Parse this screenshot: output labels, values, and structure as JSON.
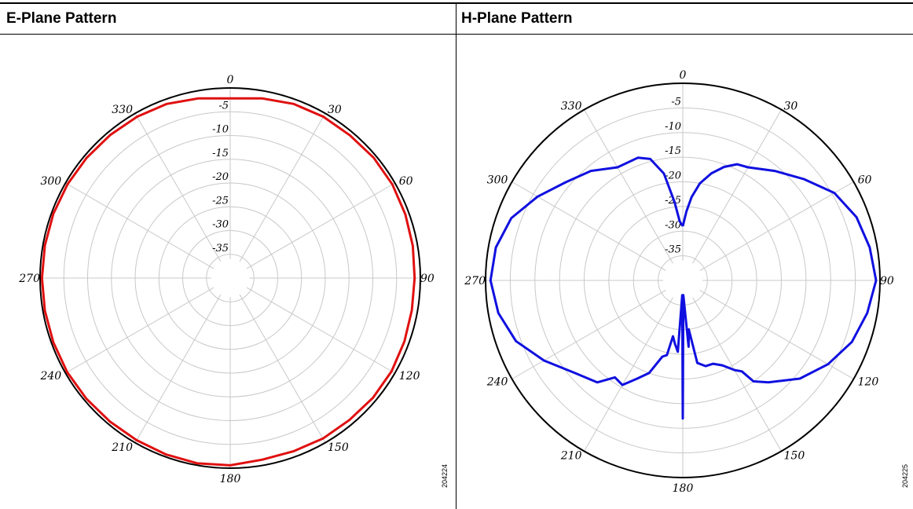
{
  "panels": [
    {
      "title": "E-Plane Pattern",
      "figure_id": "204224"
    },
    {
      "title": "H-Plane Pattern",
      "figure_id": "204225"
    }
  ],
  "chart_data": [
    {
      "type": "polar-line",
      "title": "E-Plane Pattern",
      "angle_labels": [
        "0",
        "30",
        "60",
        "90",
        "120",
        "150",
        "180",
        "210",
        "240",
        "270",
        "300",
        "330"
      ],
      "radial_labels": [
        "-5",
        "-10",
        "-15",
        "-20",
        "-25",
        "-30",
        "-35"
      ],
      "rlim": [
        -40,
        0
      ],
      "grid": true,
      "color": "#e01010",
      "series": [
        {
          "angles": [
            0,
            10,
            20,
            30,
            40,
            50,
            60,
            70,
            80,
            90,
            100,
            110,
            120,
            130,
            140,
            150,
            160,
            170,
            180,
            190,
            200,
            210,
            220,
            230,
            240,
            250,
            260,
            270,
            280,
            290,
            300,
            310,
            320,
            330,
            340,
            350,
            360
          ],
          "values": [
            -2.2,
            -1.6,
            -1.0,
            -0.8,
            -0.8,
            -0.6,
            -0.6,
            -0.8,
            -1.0,
            -1.2,
            -1.2,
            -1.0,
            -0.8,
            -0.8,
            -1.0,
            -1.0,
            -1.2,
            -1.2,
            -0.6,
            -0.4,
            -0.5,
            -0.6,
            -0.6,
            -0.5,
            -0.4,
            -0.4,
            -0.4,
            -0.4,
            -0.4,
            -0.4,
            -0.5,
            -0.6,
            -0.7,
            -0.8,
            -1.0,
            -1.6,
            -2.2
          ]
        }
      ]
    },
    {
      "type": "polar-line",
      "title": "H-Plane Pattern",
      "angle_labels": [
        "0",
        "30",
        "60",
        "90",
        "120",
        "150",
        "180",
        "210",
        "240",
        "270",
        "300",
        "330"
      ],
      "radial_labels": [
        "-5",
        "-10",
        "-15",
        "-20",
        "-25",
        "-30",
        "-35"
      ],
      "rlim": [
        -40,
        0
      ],
      "grid": true,
      "color": "#1010e0",
      "series": [
        {
          "angles": [
            0,
            3,
            6,
            10,
            15,
            20,
            25,
            30,
            40,
            50,
            60,
            70,
            80,
            90,
            100,
            110,
            120,
            130,
            140,
            145,
            147,
            150,
            155,
            160,
            165,
            170,
            173,
            175,
            178,
            180,
            182,
            184,
            187,
            190,
            192,
            195,
            200,
            205,
            210,
            215,
            220,
            230,
            240,
            250,
            260,
            270,
            280,
            290,
            300,
            310,
            320,
            330,
            340,
            345,
            350,
            354,
            357,
            360
          ],
          "values": [
            -29,
            -26,
            -23,
            -20,
            -17.5,
            -15.5,
            -14,
            -13.5,
            -11,
            -8,
            -4.5,
            -2.5,
            -1.5,
            -0.8,
            -2,
            -3.5,
            -6,
            -9,
            -13,
            -15,
            -18,
            -19,
            -21,
            -22,
            -22,
            -23,
            -30,
            -26.5,
            -37,
            -12,
            -37,
            -25.5,
            -27,
            -28.5,
            -24.5,
            -24,
            -20,
            -18,
            -15.5,
            -16,
            -13,
            -11,
            -7.5,
            -4,
            -2,
            -1,
            -1.5,
            -3,
            -6,
            -9,
            -11,
            -13.5,
            -13.5,
            -14.5,
            -18,
            -24,
            -28,
            -29
          ]
        }
      ]
    }
  ]
}
